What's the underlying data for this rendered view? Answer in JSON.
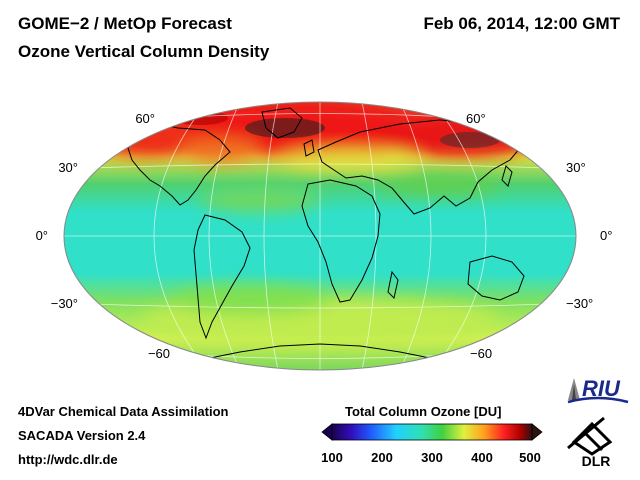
{
  "header": {
    "title_line1": "GOME−2 / MetOp Forecast",
    "title_line2": "Ozone Vertical Column Density",
    "datetime": "Feb 06, 2014, 12:00 GMT"
  },
  "map": {
    "projection": "Hammer-Aitoff (global)",
    "lat_labels_left": [
      "60°",
      "30°",
      "0°",
      "−30°",
      "−60"
    ],
    "lat_labels_right": [
      "60°",
      "30°",
      "0°",
      "−30°",
      "−60"
    ],
    "colors": {
      "background_field": "#33e0c8",
      "high_ozone": "#e81818",
      "coastline": "#000000",
      "grid": "#ffffff"
    }
  },
  "footer": {
    "line1": "4DVar Chemical Data Assimilation",
    "line2": "SACADA Version 2.4",
    "line3": "http://wdc.dlr.de"
  },
  "colorbar": {
    "title": "Total Column Ozone [DU]",
    "ticks": [
      "100",
      "200",
      "300",
      "400",
      "500"
    ],
    "range": [
      100,
      500
    ],
    "colors": [
      "#1a0050",
      "#3010c0",
      "#2060ff",
      "#20d0ff",
      "#30e0b0",
      "#40d040",
      "#e0f040",
      "#ffa020",
      "#ff2020",
      "#b00000",
      "#301010"
    ]
  },
  "logos": {
    "riu_text": "RIU",
    "dlr_text": "DLR"
  }
}
